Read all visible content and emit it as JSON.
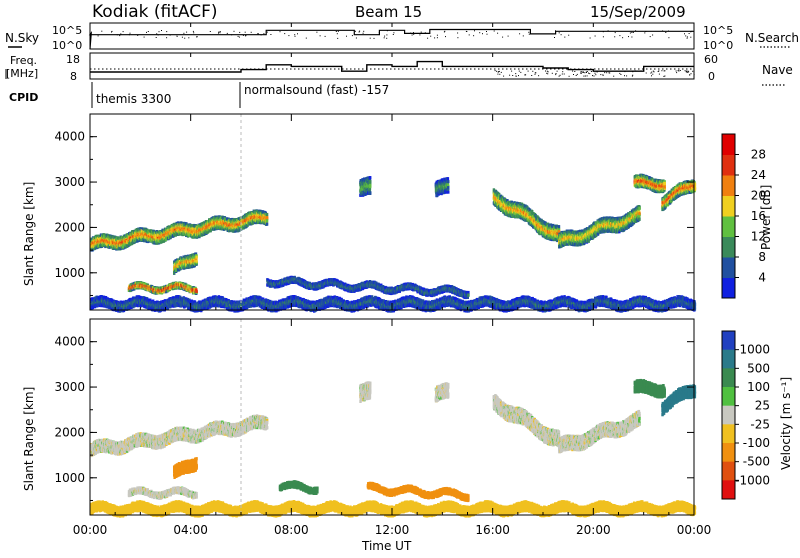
{
  "header": {
    "station": "Kodiak (fitACF)",
    "beam": "Beam 15",
    "date": "15/Sep/2009"
  },
  "noise_panel": {
    "left_label": "N.Sky",
    "right_label": "N.Search",
    "left_ticks": [
      "10^5",
      "10^0"
    ],
    "right_ticks": [
      "10^5",
      "10^0"
    ]
  },
  "freq_panel": {
    "left_label_line1": "Freq.",
    "left_label_line2": "[MHz]",
    "right_label": "Nave",
    "left_ticks": [
      "18",
      "8"
    ],
    "right_ticks": [
      "60",
      "0"
    ]
  },
  "cpid": {
    "label": "CPID",
    "modes": [
      {
        "name": "themis 3300",
        "start_hour": 0
      },
      {
        "name": "normalsound (fast) -157",
        "start_hour": 6
      }
    ]
  },
  "time_axis": {
    "label": "Time UT",
    "ticks": [
      "00:00",
      "04:00",
      "08:00",
      "12:00",
      "16:00",
      "20:00",
      "00:00"
    ]
  },
  "power_panel": {
    "ylabel": "Slant Range [km]",
    "yticks": [
      "1000",
      "2000",
      "3000",
      "4000"
    ],
    "colorbar_label": "Power [dB]",
    "colorbar_ticks": [
      "4",
      "8",
      "12",
      "16",
      "20",
      "24",
      "28"
    ],
    "colors": [
      "#1020e0",
      "#2050a0",
      "#3a8a5a",
      "#60c040",
      "#f0d020",
      "#f08010",
      "#e03010",
      "#e00000"
    ]
  },
  "velocity_panel": {
    "ylabel": "Slant Range [km]",
    "yticks": [
      "1000",
      "2000",
      "3000",
      "4000"
    ],
    "colorbar_label": "Velocity [m s⁻¹]",
    "colorbar_ticks": [
      "1000",
      "500",
      "100",
      "25",
      "-25",
      "-100",
      "-500",
      "-1000"
    ],
    "colors": [
      "#2040c0",
      "#2a7a8a",
      "#3a8a50",
      "#50c040",
      "#c8c8c0",
      "#f0c020",
      "#f09010",
      "#e05010",
      "#e01010"
    ]
  },
  "chart_data": {
    "type": "heatmap",
    "x_range_hours": [
      0,
      24
    ],
    "y_range_km": [
      180,
      4500
    ],
    "noise_sky_step_hours": [
      0,
      7,
      10.5,
      11.5,
      12.5,
      13.5,
      17.5,
      18.5,
      24
    ],
    "freq_mhz_segments": [
      {
        "start": 0,
        "end": 6,
        "value": 10.5
      },
      {
        "start": 6,
        "end": 7,
        "value": 12
      },
      {
        "start": 7,
        "end": 8,
        "value": 15
      },
      {
        "start": 8,
        "end": 10,
        "value": 14
      },
      {
        "start": 10,
        "end": 11,
        "value": 11
      },
      {
        "start": 11,
        "end": 12,
        "value": 15
      },
      {
        "start": 12,
        "end": 13,
        "value": 14
      },
      {
        "start": 13,
        "end": 14,
        "value": 17
      },
      {
        "start": 14,
        "end": 18,
        "value": 14
      },
      {
        "start": 18,
        "end": 19,
        "value": 13
      },
      {
        "start": 19,
        "end": 20,
        "value": 12
      },
      {
        "start": 20,
        "end": 22,
        "value": 11
      },
      {
        "start": 22,
        "end": 24,
        "value": 14
      }
    ],
    "power_regions": [
      {
        "name": "band-early",
        "t0": 0.0,
        "t1": 7.0,
        "r_start": 1650,
        "r_end": 2250,
        "width": 260,
        "peak_db": 24
      },
      {
        "name": "e-region-early",
        "t0": 1.5,
        "t1": 4.2,
        "r_start": 700,
        "r_end": 700,
        "width": 120,
        "peak_db": 28
      },
      {
        "name": "blob-0400",
        "t0": 3.3,
        "t1": 4.2,
        "r_start": 1100,
        "r_end": 1400,
        "width": 250,
        "peak_db": 22
      },
      {
        "name": "blob-1100",
        "t0": 10.7,
        "t1": 11.1,
        "r_start": 2900,
        "r_end": 2900,
        "width": 350,
        "peak_db": 14
      },
      {
        "name": "blob-1400",
        "t0": 13.7,
        "t1": 14.2,
        "r_start": 2900,
        "r_end": 2900,
        "width": 300,
        "peak_db": 12
      },
      {
        "name": "band-late-1",
        "t0": 16.0,
        "t1": 18.6,
        "r_start": 2700,
        "r_end": 1850,
        "width": 320,
        "peak_db": 22
      },
      {
        "name": "band-late-2",
        "t0": 18.6,
        "t1": 21.8,
        "r_start": 1700,
        "r_end": 2300,
        "width": 300,
        "peak_db": 20
      },
      {
        "name": "blob-2230",
        "t0": 21.6,
        "t1": 22.8,
        "r_start": 3000,
        "r_end": 3000,
        "width": 250,
        "peak_db": 26
      },
      {
        "name": "blob-2315",
        "t0": 22.7,
        "t1": 24.0,
        "r_start": 2600,
        "r_end": 3000,
        "width": 250,
        "peak_db": 26
      },
      {
        "name": "e-region-mid",
        "t0": 7.0,
        "t1": 15.0,
        "r_start": 850,
        "r_end": 600,
        "width": 120,
        "peak_db": 9
      },
      {
        "name": "ground-scatter-base",
        "t0": 0.0,
        "t1": 24.0,
        "r_start": 350,
        "r_end": 350,
        "width": 200,
        "peak_db": 8
      }
    ],
    "velocity_regions": [
      {
        "name": "band-early",
        "t0": 0.0,
        "t1": 7.0,
        "r_start": 1650,
        "r_end": 2250,
        "width": 260,
        "v": 0
      },
      {
        "name": "e-region-early",
        "t0": 1.5,
        "t1": 4.2,
        "r_start": 700,
        "r_end": 700,
        "width": 120,
        "v": 0
      },
      {
        "name": "blob-0400",
        "t0": 3.3,
        "t1": 4.2,
        "r_start": 1100,
        "r_end": 1400,
        "width": 250,
        "v": -150
      },
      {
        "name": "blob-1100",
        "t0": 10.7,
        "t1": 11.1,
        "r_start": 2900,
        "r_end": 2900,
        "width": 350,
        "v": 0
      },
      {
        "name": "blob-1400",
        "t0": 13.7,
        "t1": 14.2,
        "r_start": 2900,
        "r_end": 2900,
        "width": 300,
        "v": 0
      },
      {
        "name": "band-late-1",
        "t0": 16.0,
        "t1": 18.6,
        "r_start": 2700,
        "r_end": 1850,
        "width": 320,
        "v": 0
      },
      {
        "name": "band-late-2",
        "t0": 18.6,
        "t1": 21.8,
        "r_start": 1700,
        "r_end": 2300,
        "width": 300,
        "v": 0
      },
      {
        "name": "blob-2230",
        "t0": 21.6,
        "t1": 22.8,
        "r_start": 3000,
        "r_end": 3000,
        "width": 250,
        "v": 150
      },
      {
        "name": "blob-2315",
        "t0": 22.7,
        "t1": 24.0,
        "r_start": 2600,
        "r_end": 3000,
        "width": 250,
        "v": 600
      },
      {
        "name": "e-region-mid",
        "t0": 11.0,
        "t1": 15.0,
        "r_start": 800,
        "r_end": 650,
        "width": 120,
        "v": -200
      },
      {
        "name": "e-region-0800",
        "t0": 7.5,
        "t1": 9.0,
        "r_start": 850,
        "r_end": 800,
        "width": 120,
        "v": 150
      },
      {
        "name": "ground-scatter-base",
        "t0": 0.0,
        "t1": 24.0,
        "r_start": 350,
        "r_end": 350,
        "width": 200,
        "v": -60
      }
    ]
  }
}
